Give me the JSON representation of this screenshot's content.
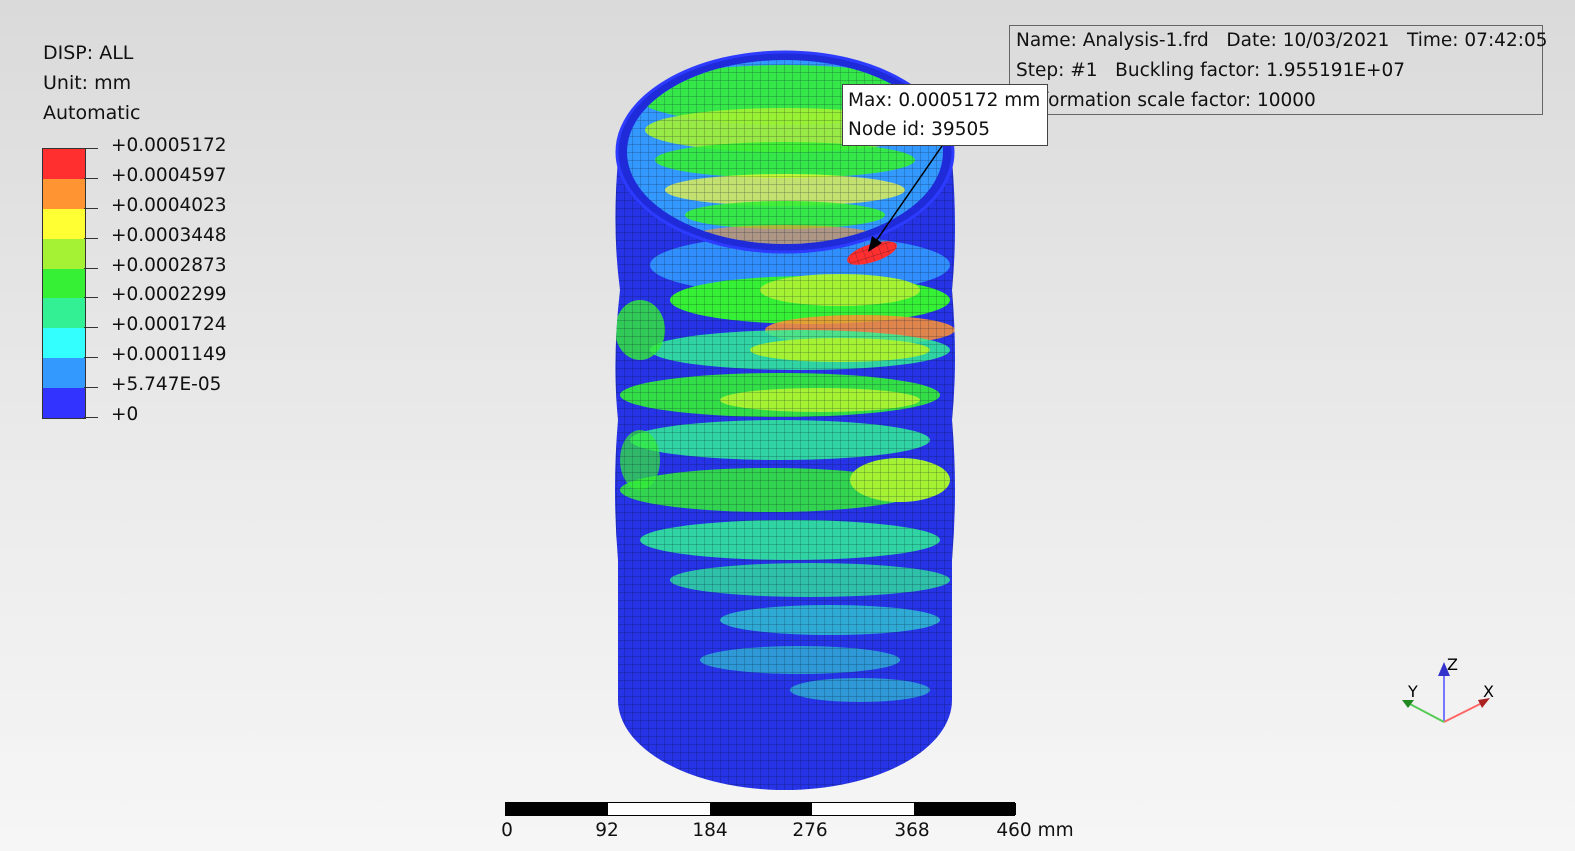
{
  "legend": {
    "title": "DISP: ALL",
    "unit": "Unit: mm",
    "mode": "Automatic",
    "colors": [
      "#ff2f2f",
      "#ff9433",
      "#ffff33",
      "#a4f233",
      "#35f035",
      "#33f095",
      "#33ffff",
      "#3399ff",
      "#3333ff"
    ],
    "labels": [
      "+0.0005172",
      "+0.0004597",
      "+0.0004023",
      "+0.0003448",
      "+0.0002873",
      "+0.0002299",
      "+0.0001724",
      "+0.0001149",
      "+5.747E-05",
      "+0"
    ]
  },
  "info": {
    "line1": "Name: Analysis-1.frd   Date: 10/03/2021   Time: 07:42:05",
    "line2": "Step: #1   Buckling factor: 1.955191E+07",
    "line3": "Deformation scale factor: 10000"
  },
  "max_marker": {
    "value_text": "Max: 0.0005172 mm",
    "node_text": "Node id: 39505"
  },
  "scale_bar": {
    "labels": [
      "0",
      "92",
      "184",
      "276",
      "368",
      "460 mm"
    ]
  },
  "axes": {
    "x": "X",
    "y": "Y",
    "z": "Z"
  }
}
